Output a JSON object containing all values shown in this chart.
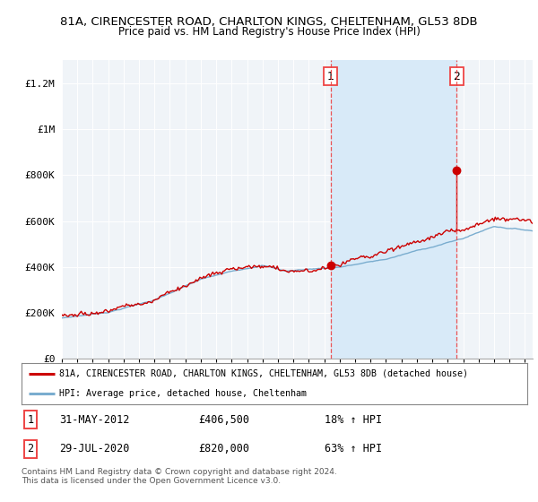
{
  "title_line1": "81A, CIRENCESTER ROAD, CHARLTON KINGS, CHELTENHAM, GL53 8DB",
  "title_line2": "Price paid vs. HM Land Registry's House Price Index (HPI)",
  "ylabel_ticks": [
    "£0",
    "£200K",
    "£400K",
    "£600K",
    "£800K",
    "£1M",
    "£1.2M"
  ],
  "ytick_values": [
    0,
    200000,
    400000,
    600000,
    800000,
    1000000,
    1200000
  ],
  "ylim": [
    0,
    1300000
  ],
  "xlim_start": 1995.0,
  "xlim_end": 2025.5,
  "red_color": "#cc0000",
  "blue_color": "#7aadcf",
  "dashed_red_color": "#ee4444",
  "plot_bg": "#f0f4f8",
  "shade_color": "#d8eaf8",
  "marker1_x": 2012.42,
  "marker1_y": 406500,
  "marker2_x": 2020.58,
  "marker2_y": 820000,
  "legend_label1": "81A, CIRENCESTER ROAD, CHARLTON KINGS, CHELTENHAM, GL53 8DB (detached house)",
  "legend_label2": "HPI: Average price, detached house, Cheltenham",
  "note1_date": "31-MAY-2012",
  "note1_price": "£406,500",
  "note1_hpi": "18% ↑ HPI",
  "note2_date": "29-JUL-2020",
  "note2_price": "£820,000",
  "note2_hpi": "63% ↑ HPI",
  "footer": "Contains HM Land Registry data © Crown copyright and database right 2024.\nThis data is licensed under the Open Government Licence v3.0."
}
